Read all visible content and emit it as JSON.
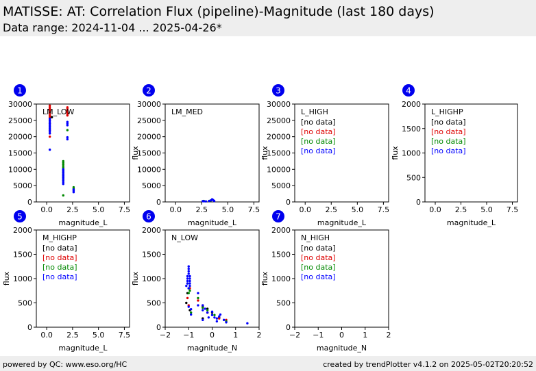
{
  "header": {
    "title": "MATISSE: AT: Correlation Flux (pipeline)-Magnitude (last 180 days)",
    "subtitle": "Data range: 2024-11-04 ... 2025-04-26*"
  },
  "footer": {
    "left": "powered by QC: www.eso.org/HC",
    "right": "created by trendPlotter v4.1.2 on 2025-05-02T20:20:52"
  },
  "colors": {
    "black": "#000000",
    "red": "#dd0000",
    "green": "#008800",
    "blue": "#0000ff",
    "badge": "#0000ee"
  },
  "chart_data": [
    {
      "id": 1,
      "badge": "1",
      "type": "scatter",
      "label": "LM_LOW",
      "xlabel": "magnitude_L",
      "ylabel": "",
      "xlim": [
        -1,
        8
      ],
      "ylim": [
        0,
        30000
      ],
      "xticks": [
        0,
        2.5,
        5,
        7.5
      ],
      "xticklabels": [
        "0.0",
        "2.5",
        "5.0",
        "7.5"
      ],
      "yticks": [
        0,
        5000,
        10000,
        15000,
        20000,
        25000,
        30000
      ],
      "yticklabels": [
        "0",
        "5000",
        "10000",
        "15000",
        "20000",
        "25000",
        "30000"
      ],
      "notes": [],
      "series": [
        {
          "color": "red",
          "points": [
            [
              0.3,
              29500
            ],
            [
              0.3,
              29000
            ],
            [
              0.3,
              28500
            ],
            [
              0.3,
              28000
            ],
            [
              0.3,
              27500
            ],
            [
              0.3,
              27000
            ],
            [
              0.3,
              26500
            ],
            [
              0.3,
              26000
            ],
            [
              0.3,
              25500
            ],
            [
              0.3,
              25000
            ],
            [
              0.3,
              24000
            ],
            [
              0.3,
              22000
            ],
            [
              0.3,
              21000
            ],
            [
              0.3,
              20000
            ],
            [
              2.0,
              29000
            ],
            [
              2.0,
              28500
            ],
            [
              2.0,
              28000
            ],
            [
              2.0,
              27500
            ],
            [
              2.0,
              27000
            ],
            [
              2.0,
              26500
            ]
          ]
        },
        {
          "color": "black",
          "points": [
            [
              0.5,
              26000
            ],
            [
              0.3,
              23000
            ]
          ]
        },
        {
          "color": "green",
          "points": [
            [
              1.6,
              12500
            ],
            [
              1.6,
              12000
            ],
            [
              1.6,
              11500
            ],
            [
              1.6,
              11000
            ],
            [
              1.6,
              10500
            ],
            [
              1.6,
              10000
            ],
            [
              1.6,
              9500
            ],
            [
              1.6,
              9000
            ],
            [
              1.6,
              8500
            ],
            [
              1.6,
              8000
            ],
            [
              1.6,
              7500
            ],
            [
              1.6,
              7000
            ],
            [
              1.6,
              6500
            ],
            [
              1.6,
              2000
            ],
            [
              2.6,
              4500
            ],
            [
              2.6,
              4000
            ],
            [
              2.0,
              22000
            ]
          ]
        },
        {
          "color": "blue",
          "points": [
            [
              0.3,
              25500
            ],
            [
              0.3,
              25000
            ],
            [
              0.3,
              24500
            ],
            [
              0.3,
              24000
            ],
            [
              0.3,
              23500
            ],
            [
              0.3,
              23000
            ],
            [
              0.3,
              22500
            ],
            [
              0.3,
              22000
            ],
            [
              0.3,
              21500
            ],
            [
              0.3,
              21000
            ],
            [
              0.3,
              16000
            ],
            [
              1.6,
              10000
            ],
            [
              1.6,
              9500
            ],
            [
              1.6,
              9000
            ],
            [
              1.6,
              8500
            ],
            [
              1.6,
              8000
            ],
            [
              1.6,
              7500
            ],
            [
              1.6,
              7000
            ],
            [
              1.6,
              6500
            ],
            [
              1.6,
              6000
            ],
            [
              1.6,
              5500
            ],
            [
              2.0,
              24500
            ],
            [
              2.0,
              24000
            ],
            [
              2.0,
              23500
            ],
            [
              2.0,
              19800
            ],
            [
              2.0,
              19200
            ],
            [
              2.6,
              3800
            ],
            [
              2.6,
              3400
            ],
            [
              2.6,
              3000
            ]
          ]
        }
      ]
    },
    {
      "id": 2,
      "badge": "2",
      "type": "scatter",
      "label": "LM_MED",
      "xlabel": "magnitude_L",
      "ylabel": "flux",
      "xlim": [
        -1,
        8
      ],
      "ylim": [
        0,
        30000
      ],
      "xticks": [
        0,
        2.5,
        5,
        7.5
      ],
      "xticklabels": [
        "0.0",
        "2.5",
        "5.0",
        "7.5"
      ],
      "yticks": [
        0,
        5000,
        10000,
        15000,
        20000,
        25000,
        30000
      ],
      "yticklabels": [
        "0",
        "5000",
        "10000",
        "15000",
        "20000",
        "25000",
        "30000"
      ],
      "notes": [],
      "series": [
        {
          "color": "green",
          "points": [
            [
              2.7,
              300
            ],
            [
              3.3,
              350
            ]
          ]
        },
        {
          "color": "blue",
          "points": [
            [
              2.6,
              250
            ],
            [
              2.7,
              200
            ],
            [
              2.9,
              180
            ],
            [
              3.2,
              300
            ],
            [
              3.4,
              500
            ],
            [
              3.5,
              800
            ],
            [
              3.6,
              600
            ],
            [
              3.7,
              300
            ]
          ]
        }
      ]
    },
    {
      "id": 3,
      "badge": "3",
      "type": "scatter",
      "label": "L_HIGH",
      "xlabel": "magnitude_L",
      "ylabel": "flux",
      "xlim": [
        -1,
        8
      ],
      "ylim": [
        0,
        30000
      ],
      "xticks": [
        0,
        2.5,
        5,
        7.5
      ],
      "xticklabels": [
        "0.0",
        "2.5",
        "5.0",
        "7.5"
      ],
      "yticks": [
        0,
        5000,
        10000,
        15000,
        20000,
        25000,
        30000
      ],
      "yticklabels": [
        "0",
        "5000",
        "10000",
        "15000",
        "20000",
        "25000",
        "30000"
      ],
      "notes": [
        {
          "text": "[no data]",
          "color": "black"
        },
        {
          "text": "[no data]",
          "color": "red"
        },
        {
          "text": "[no data]",
          "color": "green"
        },
        {
          "text": "[no data]",
          "color": "blue"
        }
      ],
      "series": []
    },
    {
      "id": 4,
      "badge": "4",
      "type": "scatter",
      "label": "L_HIGHP",
      "xlabel": "magnitude_L",
      "ylabel": "flux",
      "xlim": [
        -1,
        8
      ],
      "ylim": [
        0,
        2000
      ],
      "xticks": [
        0,
        2.5,
        5,
        7.5
      ],
      "xticklabels": [
        "0.0",
        "2.5",
        "5.0",
        "7.5"
      ],
      "yticks": [
        0,
        500,
        1000,
        1500,
        2000
      ],
      "yticklabels": [
        "0",
        "500",
        "1000",
        "1500",
        "2000"
      ],
      "notes": [
        {
          "text": "[no data]",
          "color": "black"
        },
        {
          "text": "[no data]",
          "color": "red"
        },
        {
          "text": "[no data]",
          "color": "green"
        },
        {
          "text": "[no data]",
          "color": "blue"
        }
      ],
      "series": []
    },
    {
      "id": 5,
      "badge": "5",
      "type": "scatter",
      "label": "M_HIGHP",
      "xlabel": "magnitude_L",
      "ylabel": "flux",
      "xlim": [
        -1,
        8
      ],
      "ylim": [
        0,
        2000
      ],
      "xticks": [
        0,
        2.5,
        5,
        7.5
      ],
      "xticklabels": [
        "0.0",
        "2.5",
        "5.0",
        "7.5"
      ],
      "yticks": [
        0,
        500,
        1000,
        1500,
        2000
      ],
      "yticklabels": [
        "0",
        "500",
        "1000",
        "1500",
        "2000"
      ],
      "notes": [
        {
          "text": "[no data]",
          "color": "black"
        },
        {
          "text": "[no data]",
          "color": "red"
        },
        {
          "text": "[no data]",
          "color": "green"
        },
        {
          "text": "[no data]",
          "color": "blue"
        }
      ],
      "series": []
    },
    {
      "id": 6,
      "badge": "6",
      "type": "scatter",
      "label": "N_LOW",
      "xlabel": "magnitude_N",
      "ylabel": "flux",
      "xlim": [
        -2,
        2
      ],
      "ylim": [
        0,
        2000
      ],
      "xticks": [
        -2,
        -1,
        0,
        1,
        2
      ],
      "xticklabels": [
        "−2",
        "−1",
        "0",
        "1",
        "2"
      ],
      "yticks": [
        0,
        500,
        1000,
        1500,
        2000
      ],
      "yticklabels": [
        "0",
        "500",
        "1000",
        "1500",
        "2000"
      ],
      "notes": [],
      "series": [
        {
          "color": "black",
          "points": [
            [
              -1.1,
              500
            ],
            [
              -1.05,
              700
            ],
            [
              -0.95,
              350
            ],
            [
              -0.4,
              420
            ],
            [
              -0.4,
              180
            ],
            [
              0.0,
              300
            ],
            [
              0.3,
              200
            ],
            [
              -0.2,
              380
            ]
          ]
        },
        {
          "color": "red",
          "points": [
            [
              -1.0,
              450
            ],
            [
              -1.05,
              600
            ],
            [
              -0.95,
              800
            ],
            [
              -0.6,
              550
            ],
            [
              -0.4,
              450
            ],
            [
              -0.2,
              300
            ],
            [
              0.3,
              180
            ],
            [
              0.6,
              150
            ]
          ]
        },
        {
          "color": "green",
          "points": [
            [
              -1.05,
              900
            ],
            [
              -1.0,
              800
            ],
            [
              -0.95,
              750
            ],
            [
              -1.0,
              700
            ],
            [
              -0.6,
              600
            ],
            [
              -0.4,
              400
            ],
            [
              -0.2,
              350
            ],
            [
              0.1,
              250
            ],
            [
              0.6,
              120
            ],
            [
              -0.9,
              300
            ]
          ]
        },
        {
          "color": "blue",
          "points": [
            [
              -1.0,
              1250
            ],
            [
              -1.0,
              1200
            ],
            [
              -1.0,
              1150
            ],
            [
              -1.0,
              1100
            ],
            [
              -1.05,
              1050
            ],
            [
              -0.95,
              1050
            ],
            [
              -1.05,
              1000
            ],
            [
              -0.95,
              1000
            ],
            [
              -1.05,
              950
            ],
            [
              -0.95,
              950
            ],
            [
              -1.05,
              900
            ],
            [
              -0.95,
              900
            ],
            [
              -1.1,
              850
            ],
            [
              -0.95,
              850
            ],
            [
              -1.0,
              800
            ],
            [
              -0.6,
              700
            ],
            [
              -0.6,
              450
            ],
            [
              -0.4,
              450
            ],
            [
              -0.4,
              350
            ],
            [
              -0.4,
              150
            ],
            [
              -0.3,
              380
            ],
            [
              -0.2,
              300
            ],
            [
              -0.15,
              200
            ],
            [
              0.0,
              320
            ],
            [
              0.0,
              250
            ],
            [
              0.1,
              200
            ],
            [
              0.2,
              180
            ],
            [
              0.2,
              120
            ],
            [
              0.3,
              220
            ],
            [
              0.35,
              260
            ],
            [
              0.5,
              150
            ],
            [
              0.6,
              100
            ],
            [
              1.5,
              80
            ],
            [
              -1.0,
              420
            ],
            [
              -0.9,
              370
            ],
            [
              -0.9,
              260
            ]
          ]
        }
      ]
    },
    {
      "id": 7,
      "badge": "7",
      "type": "scatter",
      "label": "N_HIGH",
      "xlabel": "magnitude_N",
      "ylabel": "flux",
      "xlim": [
        -2,
        2
      ],
      "ylim": [
        0,
        2000
      ],
      "xticks": [
        -2,
        -1,
        0,
        1,
        2
      ],
      "xticklabels": [
        "−2",
        "−1",
        "0",
        "1",
        "2"
      ],
      "yticks": [
        0,
        500,
        1000,
        1500,
        2000
      ],
      "yticklabels": [
        "0",
        "500",
        "1000",
        "1500",
        "2000"
      ],
      "notes": [
        {
          "text": "[no data]",
          "color": "black"
        },
        {
          "text": "[no data]",
          "color": "red"
        },
        {
          "text": "[no data]",
          "color": "green"
        },
        {
          "text": "[no data]",
          "color": "blue"
        }
      ],
      "series": []
    }
  ]
}
